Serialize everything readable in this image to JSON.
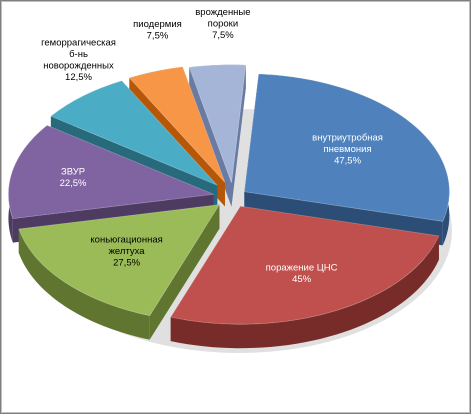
{
  "chart_data": {
    "type": "pie",
    "style": "exploded-3d",
    "title": "",
    "slices": [
      {
        "label_lines": [
          "внутриутробная",
          "пневмония"
        ],
        "value_label": "47,5%",
        "value": 47.5,
        "color": "#4f81bd",
        "side": "#2c4d75",
        "text": "light"
      },
      {
        "label_lines": [
          "поражение ЦНС"
        ],
        "value_label": "45%",
        "value": 45,
        "color": "#c0504d",
        "side": "#772c2a",
        "text": "light"
      },
      {
        "label_lines": [
          "коньюгационная",
          "желтуха"
        ],
        "value_label": "27,5%",
        "value": 27.5,
        "color": "#9bbb59",
        "side": "#5f7530",
        "text": "dark"
      },
      {
        "label_lines": [
          "ЗВУР"
        ],
        "value_label": "22,5%",
        "value": 22.5,
        "color": "#8064a2",
        "side": "#4d3b62",
        "text": "light"
      },
      {
        "label_lines": [
          "геморрагическая",
          "б-нь",
          "новорожденных"
        ],
        "value_label": "12,5%",
        "value": 12.5,
        "color": "#4bacc6",
        "side": "#276a7c",
        "text": "dark"
      },
      {
        "label_lines": [
          "пиодермия"
        ],
        "value_label": "7,5%",
        "value": 7.5,
        "color": "#f79646",
        "side": "#b65708",
        "text": "dark"
      },
      {
        "label_lines": [
          "врожденные",
          "пороки"
        ],
        "value_label": "7,5%",
        "value": 7.5,
        "color": "#a5b5d8",
        "side": "#6a7ba3",
        "text": "dark"
      }
    ]
  }
}
